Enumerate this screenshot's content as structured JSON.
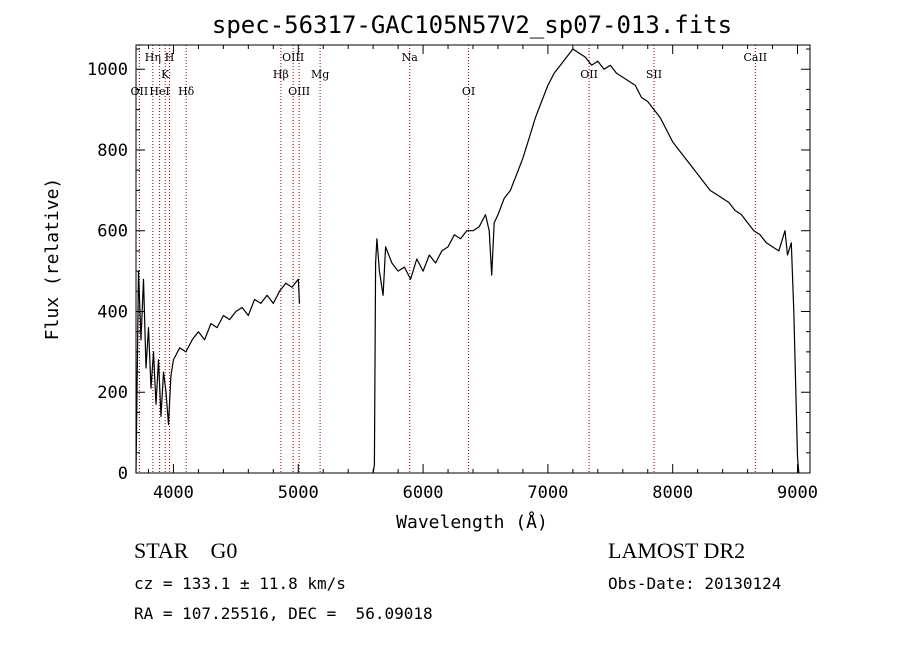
{
  "chart_data": {
    "type": "line",
    "title": "spec-56317-GAC105N57V2_sp07-013.fits",
    "xlabel": "Wavelength (Å)",
    "ylabel": "Flux (relative)",
    "xlim": [
      3700,
      9100
    ],
    "ylim": [
      0,
      1060
    ],
    "x_ticks": [
      4000,
      5000,
      6000,
      7000,
      8000,
      9000
    ],
    "y_ticks": [
      0,
      200,
      400,
      600,
      800,
      1000
    ],
    "x_tick_labels": [
      "4000",
      "5000",
      "6000",
      "7000",
      "8000",
      "9000"
    ],
    "y_tick_labels": [
      "0",
      "200",
      "400",
      "600",
      "800",
      "1000"
    ],
    "grid": false,
    "series": [
      {
        "segments": [
          {
            "x": [
              3700,
              3720,
              3740,
              3760,
              3780,
              3800,
              3820,
              3840,
              3860,
              3880,
              3900,
              3920,
              3940,
              3960,
              3980,
              4000,
              4050,
              4100,
              4150,
              4200,
              4250,
              4300,
              4350,
              4400,
              4450,
              4500,
              4550,
              4600,
              4650,
              4700,
              4750,
              4800,
              4850,
              4900,
              4950,
              5000,
              5010
            ],
            "y": [
              0,
              500,
              330,
              480,
              260,
              360,
              210,
              300,
              170,
              280,
              140,
              250,
              200,
              120,
              240,
              280,
              310,
              300,
              330,
              350,
              330,
              370,
              360,
              390,
              380,
              400,
              410,
              390,
              430,
              420,
              440,
              420,
              450,
              470,
              460,
              480,
              420
            ]
          },
          {
            "x": [
              5600,
              5610,
              5620,
              5630,
              5650,
              5680,
              5700,
              5750,
              5800,
              5850,
              5900,
              5950,
              6000,
              6050,
              6100,
              6150,
              6200,
              6250,
              6300,
              6350,
              6400,
              6450,
              6500,
              6530,
              6550,
              6570,
              6600,
              6650,
              6700,
              6750,
              6800,
              6850,
              6900,
              6950,
              7000,
              7050,
              7100,
              7150,
              7200,
              7250,
              7300,
              7350,
              7400,
              7450,
              7500,
              7550,
              7600,
              7650,
              7700,
              7750,
              7800,
              7850,
              7900,
              7950,
              8000,
              8050,
              8100,
              8150,
              8200,
              8250,
              8300,
              8350,
              8400,
              8450,
              8500,
              8550,
              8600,
              8650,
              8700,
              8750,
              8800,
              8850,
              8900,
              8920,
              8950,
              8970,
              9000,
              9010
            ],
            "y": [
              0,
              20,
              520,
              580,
              500,
              440,
              560,
              520,
              500,
              510,
              480,
              530,
              500,
              540,
              520,
              550,
              560,
              590,
              580,
              600,
              600,
              610,
              640,
              600,
              490,
              620,
              640,
              680,
              700,
              740,
              780,
              830,
              880,
              920,
              960,
              990,
              1010,
              1030,
              1050,
              1040,
              1030,
              1010,
              1020,
              1000,
              1010,
              990,
              980,
              970,
              960,
              930,
              920,
              900,
              880,
              850,
              820,
              800,
              780,
              760,
              740,
              720,
              700,
              690,
              680,
              670,
              650,
              640,
              620,
              600,
              590,
              570,
              560,
              550,
              600,
              540,
              570,
              400,
              40,
              0
            ]
          }
        ]
      }
    ],
    "line_markers": [
      {
        "label": "OII",
        "wavelength": 3727,
        "row": 3
      },
      {
        "label": "Hη",
        "wavelength": 3835,
        "row": 1
      },
      {
        "label": "HeI",
        "wavelength": 3889,
        "row": 3
      },
      {
        "label": "K",
        "wavelength": 3934,
        "row": 2
      },
      {
        "label": "H",
        "wavelength": 3969,
        "row": 1
      },
      {
        "label": "Hδ",
        "wavelength": 4102,
        "row": 3
      },
      {
        "label": "Hβ",
        "wavelength": 4861,
        "row": 2
      },
      {
        "label": "OIII",
        "wavelength": 4959,
        "row": 1
      },
      {
        "label": "OIII",
        "wavelength": 5007,
        "row": 3
      },
      {
        "label": "Mg",
        "wavelength": 5175,
        "row": 2
      },
      {
        "label": "Na",
        "wavelength": 5893,
        "row": 1
      },
      {
        "label": "OI",
        "wavelength": 6364,
        "row": 3
      },
      {
        "label": "OII",
        "wavelength": 7330,
        "row": 2
      },
      {
        "label": "SII",
        "wavelength": 7850,
        "row": 2
      },
      {
        "label": "CaII",
        "wavelength": 8662,
        "row": 1
      }
    ],
    "marker_color": "#8b0000",
    "line_color": "#000000"
  },
  "info": {
    "class": "STAR    G0",
    "survey": "LAMOST DR2",
    "redshift": "cz = 133.1 ± 11.8 km/s",
    "obs_date": "Obs-Date: 20130124",
    "coords": "RA = 107.25516, DEC =  56.09018"
  }
}
